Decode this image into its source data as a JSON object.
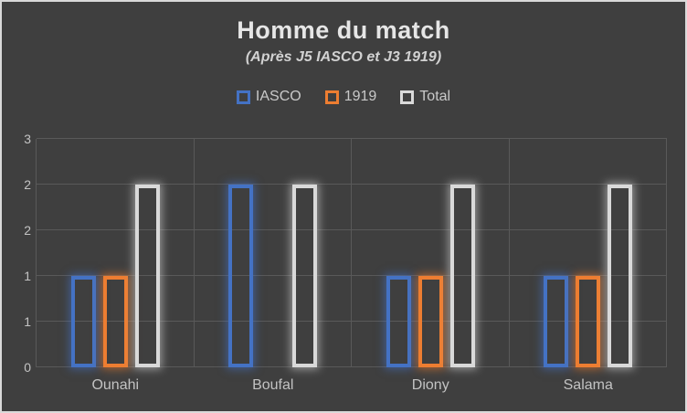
{
  "frame": {
    "background_color": "#3F3F3F",
    "border_color": "#D9D9D9"
  },
  "chart_data": {
    "type": "bar",
    "title": "Homme du match",
    "subtitle": "(Après J5 IASCO et J3 1919)",
    "categories": [
      "Ounahi",
      "Boufal",
      "Diony",
      "Salama"
    ],
    "series": [
      {
        "name": "IASCO",
        "color": "#4472C4",
        "values": [
          1,
          2,
          1,
          1
        ]
      },
      {
        "name": "1919",
        "color": "#ED7D31",
        "values": [
          1,
          0,
          1,
          1
        ]
      },
      {
        "name": "Total",
        "color": "#D9D9D9",
        "values": [
          2,
          2,
          2,
          2
        ]
      }
    ],
    "ylim": [
      0,
      2.5
    ],
    "ytick_interval": 0.5,
    "ytick_labels_top_to_bottom": [
      "3",
      "2",
      "2",
      "1",
      "1",
      "0"
    ],
    "grid": true,
    "legend_position": "top",
    "bar_style": "hollow-outline-glow",
    "colors": {
      "title_text": "#E6E6E6",
      "subtitle_text": "#D2D2D2",
      "axis_text": "#C3C3C3",
      "legend_text": "#C9C9C9",
      "gridline": "#595959"
    }
  }
}
